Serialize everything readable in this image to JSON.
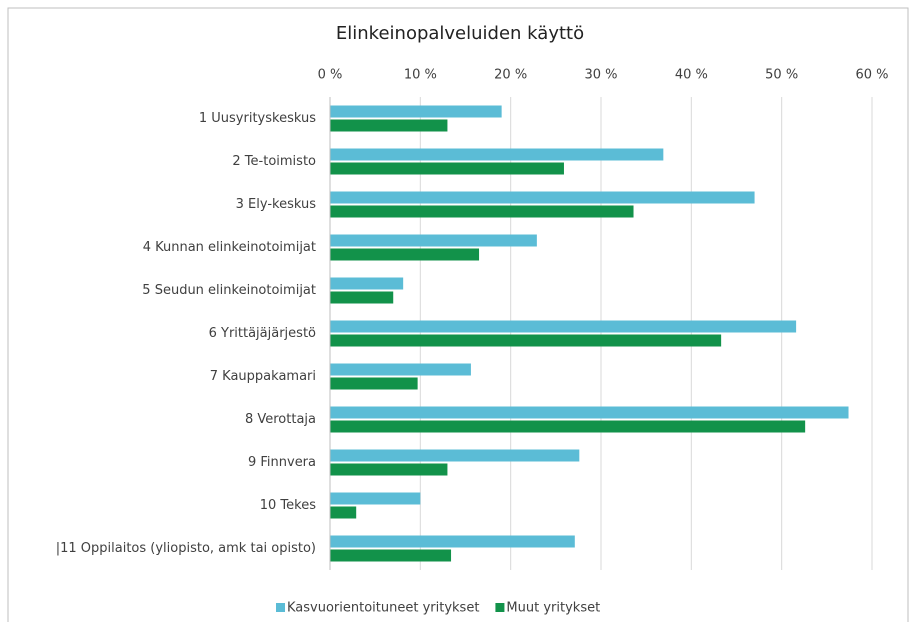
{
  "chart_data": {
    "type": "hbar",
    "title": "Elinkeinopalveluiden käyttö",
    "categories": [
      "1 Uusyrityskeskus",
      "2 Te-toimisto",
      "3 Ely-keskus",
      "4 Kunnan elinkeinotoimijat",
      "5 Seudun elinkeinotoimijat",
      "6 Yrittäjäjärjestö",
      "7 Kauppakamari",
      "8 Verottaja",
      "9 Finnvera",
      "10 Tekes",
      "|11 Oppilaitos (yliopisto, amk tai opisto)"
    ],
    "series": [
      {
        "name": "Kasvuorientoituneet yritykset",
        "color": "#5bbcd6",
        "values": [
          19.0,
          36.9,
          47.0,
          22.9,
          8.1,
          51.6,
          15.6,
          57.4,
          27.6,
          10.0,
          27.1
        ]
      },
      {
        "name": "Muut yritykset",
        "color": "#12924a",
        "values": [
          13.0,
          25.9,
          33.6,
          16.5,
          7.0,
          43.3,
          9.7,
          52.6,
          13.0,
          2.9,
          13.4
        ]
      }
    ],
    "xlim": [
      0,
      60
    ],
    "xticks": [
      {
        "value": 0,
        "label": "0 %"
      },
      {
        "value": 10,
        "label": "10 %"
      },
      {
        "value": 20,
        "label": "20 %"
      },
      {
        "value": 30,
        "label": "30 %"
      },
      {
        "value": 40,
        "label": "40 %"
      },
      {
        "value": 50,
        "label": "50 %"
      },
      {
        "value": 60,
        "label": "60 %"
      }
    ],
    "grid": true,
    "legend": "bottom"
  }
}
